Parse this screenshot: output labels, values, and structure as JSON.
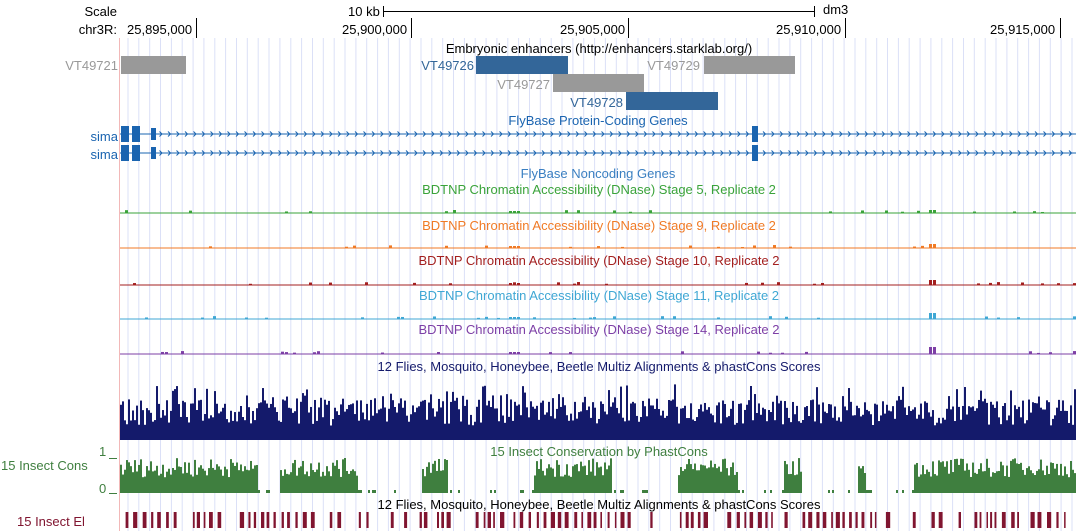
{
  "ruler": {
    "scale_label": "Scale",
    "scale_text": "10 kb",
    "assembly": "dm3",
    "chrom_label": "chr3R:",
    "ticks": [
      "25,895,000",
      "25,900,000",
      "25,905,000",
      "25,910,000",
      "25,915,000"
    ]
  },
  "tracks": {
    "enhancers": {
      "title": "Embryonic enhancers (http://enhancers.starklab.org/)",
      "items": [
        {
          "name": "VT49721",
          "color": "#999999"
        },
        {
          "name": "VT49726",
          "color": "#336699"
        },
        {
          "name": "VT49727",
          "color": "#999999"
        },
        {
          "name": "VT49729",
          "color": "#999999"
        },
        {
          "name": "VT49728",
          "color": "#336699"
        }
      ]
    },
    "genes": {
      "title": "FlyBase Protein-Coding Genes",
      "color": "#1a64b0",
      "items": [
        "sima",
        "sima"
      ]
    },
    "noncoding": {
      "title": "FlyBase Noncoding Genes",
      "color": "#3a7fc1"
    },
    "dnase": [
      {
        "title": "BDTNP Chromatin Accessibility (DNase) Stage 5, Replicate 2",
        "color": "#3aa33a"
      },
      {
        "title": "BDTNP Chromatin Accessibility (DNase) Stage 9, Replicate 2",
        "color": "#f07a25"
      },
      {
        "title": "BDTNP Chromatin Accessibility (DNase) Stage 10, Replicate 2",
        "color": "#a31f1f"
      },
      {
        "title": "BDTNP Chromatin Accessibility (DNase) Stage 11, Replicate 2",
        "color": "#3fa7d4"
      },
      {
        "title": "BDTNP Chromatin Accessibility (DNase) Stage 14, Replicate 2",
        "color": "#7d3fa6"
      }
    ],
    "multiz": {
      "title": "12 Flies, Mosquito, Honeybee, Beetle Multiz Alignments & phastCons Scores",
      "color": "#141a6b"
    },
    "phastcons": {
      "title": "15 Insect Conservation by PhastCons",
      "label": "15 Insect Cons",
      "ymax": "1",
      "ymin": "0",
      "color": "#3f7f3f"
    },
    "elements": {
      "title": "12 Flies, Mosquito, Honeybee, Beetle Multiz Alignments & phastCons Scores",
      "label": "15 Insect El",
      "color": "#801530"
    }
  }
}
